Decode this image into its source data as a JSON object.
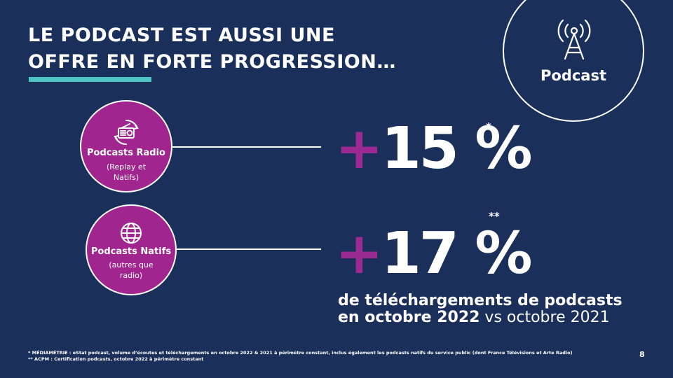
{
  "title": {
    "line1": "LE PODCAST EST AUSSI UNE",
    "line2": "OFFRE EN FORTE PROGRESSION…"
  },
  "colors": {
    "background": "#1b2f5b",
    "accent_teal": "#4fc4c4",
    "accent_magenta": "#a1258f"
  },
  "podcast_badge": {
    "icon": "antenna-icon",
    "label": "Podcast"
  },
  "items": [
    {
      "icon": "radio-icon",
      "name": "Podcasts Radio",
      "sub": "(Replay et Natifs)",
      "plus": "+",
      "value": "15 %",
      "note_mark": "*"
    },
    {
      "icon": "globe-icon",
      "name": "Podcasts Natifs",
      "sub": "(autres que radio)",
      "plus": "+",
      "value": "17 %",
      "note_mark": "**"
    }
  ],
  "caption": {
    "line1": "de téléchargements de podcasts",
    "line2_bold": "en octobre 2022",
    "line2_rest": " vs octobre 2021"
  },
  "footnotes": [
    "* MÉDIAMÉTRIE : eStat podcast, volume d’écoutes et téléchargements en octobre 2022 & 2021 à périmètre constant, inclus également les podcasts natifs du service public (dont France Télévisions et Arte Radio)",
    "** ACPM : Certification podcasts, octobre 2022 à périmètre constant"
  ],
  "page_number": "8"
}
